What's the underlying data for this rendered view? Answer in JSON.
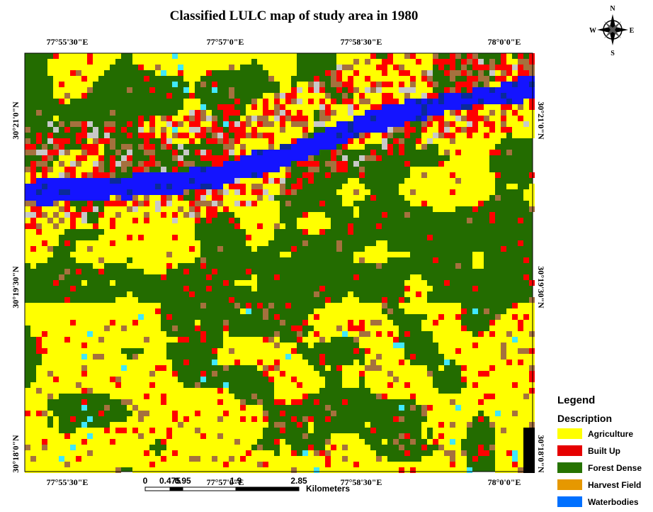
{
  "title": "Classified LULC map of study area in 1980",
  "map": {
    "top_labels": [
      "77°55'30\"E",
      "77°57'0\"E",
      "77°58'30\"E",
      "78°0'0\"E"
    ],
    "bottom_labels": [
      "77°55'30\"E",
      "77°57'0\"E",
      "77°58'30\"E",
      "78°0'0\"E"
    ],
    "left_labels": [
      "30°21'0\"N",
      "30°19'30\"N",
      "30°18'0\"N"
    ],
    "right_labels": [
      "30°21'0\"N",
      "30°19'30\"N",
      "30°18'0\"N"
    ]
  },
  "compass": {
    "n": "N",
    "s": "S",
    "e": "E",
    "w": "W"
  },
  "scale_bar": {
    "labels": [
      "0",
      "0.475",
      "0.95",
      "1.9",
      "2.85"
    ],
    "unit": "Kilometers"
  },
  "legend": {
    "title": "Legend",
    "subtitle": "Description",
    "items": [
      {
        "label": "Agriculture",
        "color": "#ffff00"
      },
      {
        "label": "Built Up",
        "color": "#e60000"
      },
      {
        "label": "Forest Dense",
        "color": "#267300"
      },
      {
        "label": "Harvest Field",
        "color": "#e69800"
      },
      {
        "label": "Waterbodies",
        "color": "#0070ff"
      }
    ]
  }
}
